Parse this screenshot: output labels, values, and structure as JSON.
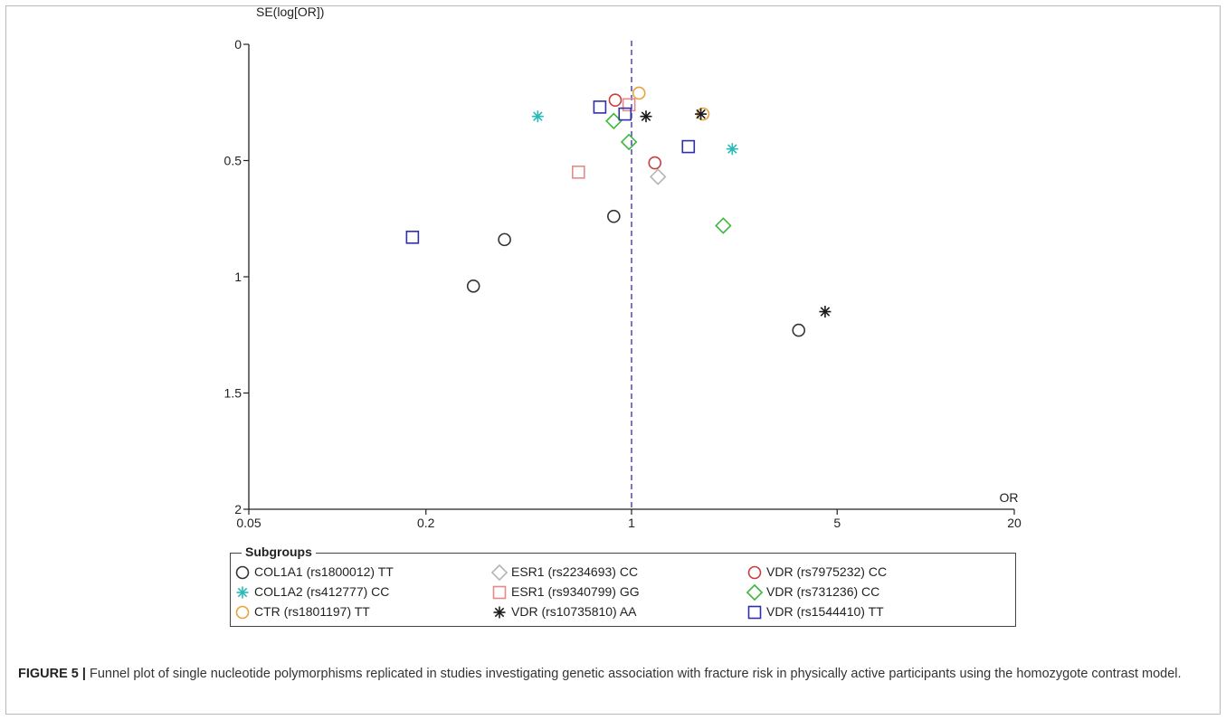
{
  "caption": {
    "label": "FIGURE 5 |",
    "text": " Funnel plot of single nucleotide polymorphisms replicated in studies investigating genetic association with fracture risk in physically active participants using the homozygote contrast model."
  },
  "legend": {
    "title": "Subgroups",
    "placement": "bottom"
  },
  "chart_data": {
    "type": "scatter",
    "plot_kind": "funnel",
    "x_scale": "log",
    "y_inverted": true,
    "xlabel": "OR",
    "ylabel": "SE(log[OR])",
    "xlim": [
      0.05,
      20
    ],
    "ylim": [
      0,
      2
    ],
    "x_ticks": [
      0.05,
      0.2,
      1,
      5,
      20
    ],
    "x_tick_labels": [
      "0.05",
      "0.2",
      "1",
      "5",
      "20"
    ],
    "y_ticks": [
      0,
      0.5,
      1,
      1.5,
      2
    ],
    "y_tick_labels": [
      "0",
      "0.5",
      "1",
      "1.5",
      "2"
    ],
    "reference_line": {
      "x": 1,
      "style": "dashed",
      "color": "#5a4fc4"
    },
    "grid": false,
    "series": [
      {
        "name": "COL1A1 (rs1800012) TT",
        "marker": "circle",
        "color": "#333333",
        "points": [
          [
            0.29,
            1.04
          ],
          [
            0.37,
            0.84
          ],
          [
            0.87,
            0.74
          ],
          [
            3.7,
            1.23
          ]
        ]
      },
      {
        "name": "COL1A2 (rs412777) CC",
        "marker": "asterisk",
        "color": "#2ab8b8",
        "points": [
          [
            0.48,
            0.31
          ],
          [
            2.2,
            0.45
          ]
        ]
      },
      {
        "name": "CTR (rs1801197) TT",
        "marker": "circle",
        "color": "#e8a33c",
        "points": [
          [
            1.06,
            0.21
          ],
          [
            1.75,
            0.3
          ]
        ]
      },
      {
        "name": "ESR1 (rs2234693) CC",
        "marker": "diamond",
        "color": "#b5b5b5",
        "points": [
          [
            1.23,
            0.57
          ]
        ]
      },
      {
        "name": "ESR1 (rs9340799) GG",
        "marker": "square",
        "color": "#e58a8a",
        "points": [
          [
            0.66,
            0.55
          ],
          [
            0.98,
            0.26
          ]
        ]
      },
      {
        "name": "VDR (rs10735810) AA",
        "marker": "asterisk",
        "color": "#1a1a1a",
        "points": [
          [
            1.12,
            0.31
          ],
          [
            1.72,
            0.3
          ],
          [
            4.55,
            1.15
          ]
        ]
      },
      {
        "name": "VDR (rs7975232) CC",
        "marker": "circle",
        "color": "#cc3b3b",
        "points": [
          [
            0.88,
            0.24
          ],
          [
            1.2,
            0.51
          ]
        ]
      },
      {
        "name": "VDR (rs731236) CC",
        "marker": "diamond",
        "color": "#3cb83c",
        "points": [
          [
            0.87,
            0.33
          ],
          [
            0.98,
            0.42
          ],
          [
            2.05,
            0.78
          ]
        ]
      },
      {
        "name": "VDR (rs1544410) TT",
        "marker": "square",
        "color": "#2f2fa8",
        "points": [
          [
            0.18,
            0.83
          ],
          [
            0.78,
            0.27
          ],
          [
            0.95,
            0.3
          ],
          [
            1.56,
            0.44
          ]
        ]
      }
    ]
  }
}
